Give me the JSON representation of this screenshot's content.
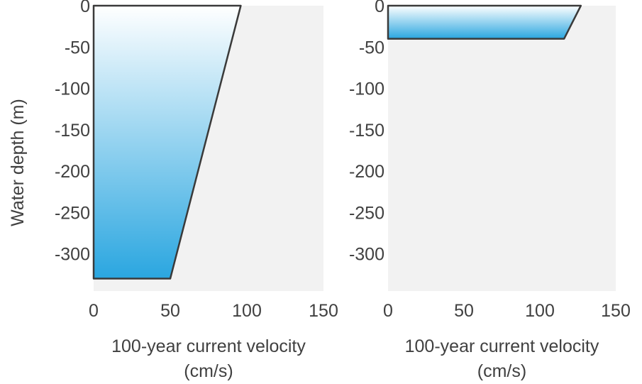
{
  "colors": {
    "plot_background": "#f2f2f2",
    "fill_top": "#ffffff",
    "fill_bottom": "#2aa6e0",
    "outline": "#3a3a3a",
    "text": "#404040"
  },
  "chart_data": [
    {
      "type": "area",
      "xlabel": [
        "100-year current velocity",
        "(cm/s)"
      ],
      "ylabel": "Water depth (m)",
      "xlim": [
        0,
        150
      ],
      "ylim": [
        -345,
        0
      ],
      "xticks": [
        0,
        50,
        100,
        150
      ],
      "yticks": [
        0,
        -50,
        -100,
        -150,
        -200,
        -250,
        -300
      ],
      "grid": false,
      "profile": {
        "x": [
          0,
          96,
          50,
          0
        ],
        "y": [
          0,
          0,
          -330,
          -330
        ]
      }
    },
    {
      "type": "area",
      "xlabel": [
        "100-year current velocity",
        "(cm/s)"
      ],
      "ylabel": "",
      "xlim": [
        0,
        150
      ],
      "ylim": [
        -345,
        0
      ],
      "xticks": [
        0,
        50,
        100,
        150
      ],
      "yticks": [
        0,
        -50,
        -100,
        -150,
        -200,
        -250,
        -300
      ],
      "grid": false,
      "profile": {
        "x": [
          0,
          127,
          116,
          0
        ],
        "y": [
          0,
          0,
          -40,
          -40
        ]
      }
    }
  ]
}
